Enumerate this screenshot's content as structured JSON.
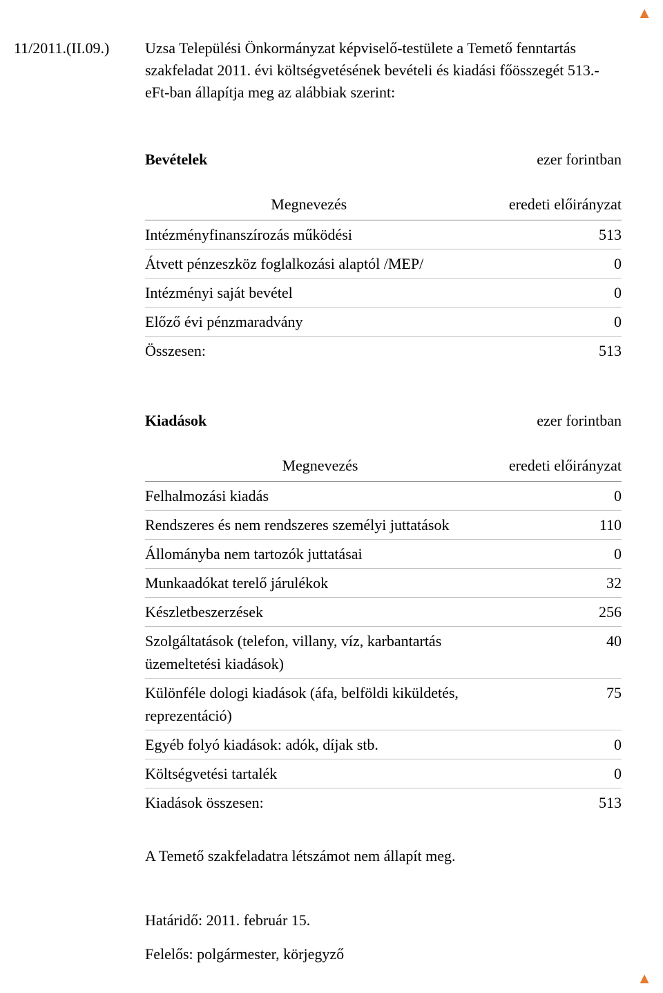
{
  "colors": {
    "text": "#000000",
    "background": "#ffffff",
    "rule_dark": "#808080",
    "rule_light": "#bfbfbf",
    "arrow": "#e67a2e"
  },
  "typography": {
    "family": "Times New Roman",
    "body_size_pt": 16,
    "bold_sections": true
  },
  "header": {
    "number": "11/2011.(II.09.)",
    "text": "Uzsa Települési Önkormányzat képviselő-testülete a Temető fenntartás szakfeladat 2011. évi költségvetésének bevételi és kiadási főösszegét 513.- eFt-ban állapítja meg az alábbiak szerint:"
  },
  "tables": {
    "bevetelek": {
      "title": "Bevételek",
      "unit": "ezer forintban",
      "col_name": "Megnevezés",
      "col_val": "eredeti előirányzat",
      "rows": [
        {
          "label": "Intézményfinanszírozás működési",
          "value": "513"
        },
        {
          "label": "Átvett pénzeszköz foglalkozási alaptól /MEP/",
          "value": "0"
        },
        {
          "label": "Intézményi saját bevétel",
          "value": "0"
        },
        {
          "label": "Előző évi pénzmaradvány",
          "value": "0"
        },
        {
          "label": "Összesen:",
          "value": "513"
        }
      ]
    },
    "kiadasok": {
      "title": "Kiadások",
      "unit": "ezer forintban",
      "col_name": "Megnevezés",
      "col_val": "eredeti előirányzat",
      "rows": [
        {
          "label": "Felhalmozási kiadás",
          "value": "0"
        },
        {
          "label": "Rendszeres és nem rendszeres személyi juttatások",
          "value": "110"
        },
        {
          "label": "Állományba nem tartozók juttatásai",
          "value": "0"
        },
        {
          "label": "Munkaadókat terelő járulékok",
          "value": "32"
        },
        {
          "label": "Készletbeszerzések",
          "value": "256"
        },
        {
          "label": "Szolgáltatások (telefon, villany, víz, karbantartás üzemeltetési kiadások)",
          "value": "40"
        },
        {
          "label": "Különféle dologi kiadások (áfa, belföldi kiküldetés, reprezentáció)",
          "value": "75"
        },
        {
          "label": "Egyéb folyó kiadások: adók, díjak stb.",
          "value": "0"
        },
        {
          "label": "Költségvetési tartalék",
          "value": "0"
        },
        {
          "label": "Kiadások összesen:",
          "value": "513"
        }
      ]
    }
  },
  "footer": {
    "note": "A Temető szakfeladatra létszámot nem állapít meg.",
    "deadline": "Határidő: 2011. február 15.",
    "responsible": "Felelős: polgármester, körjegyző"
  },
  "nav": {
    "glyph": "▲"
  }
}
